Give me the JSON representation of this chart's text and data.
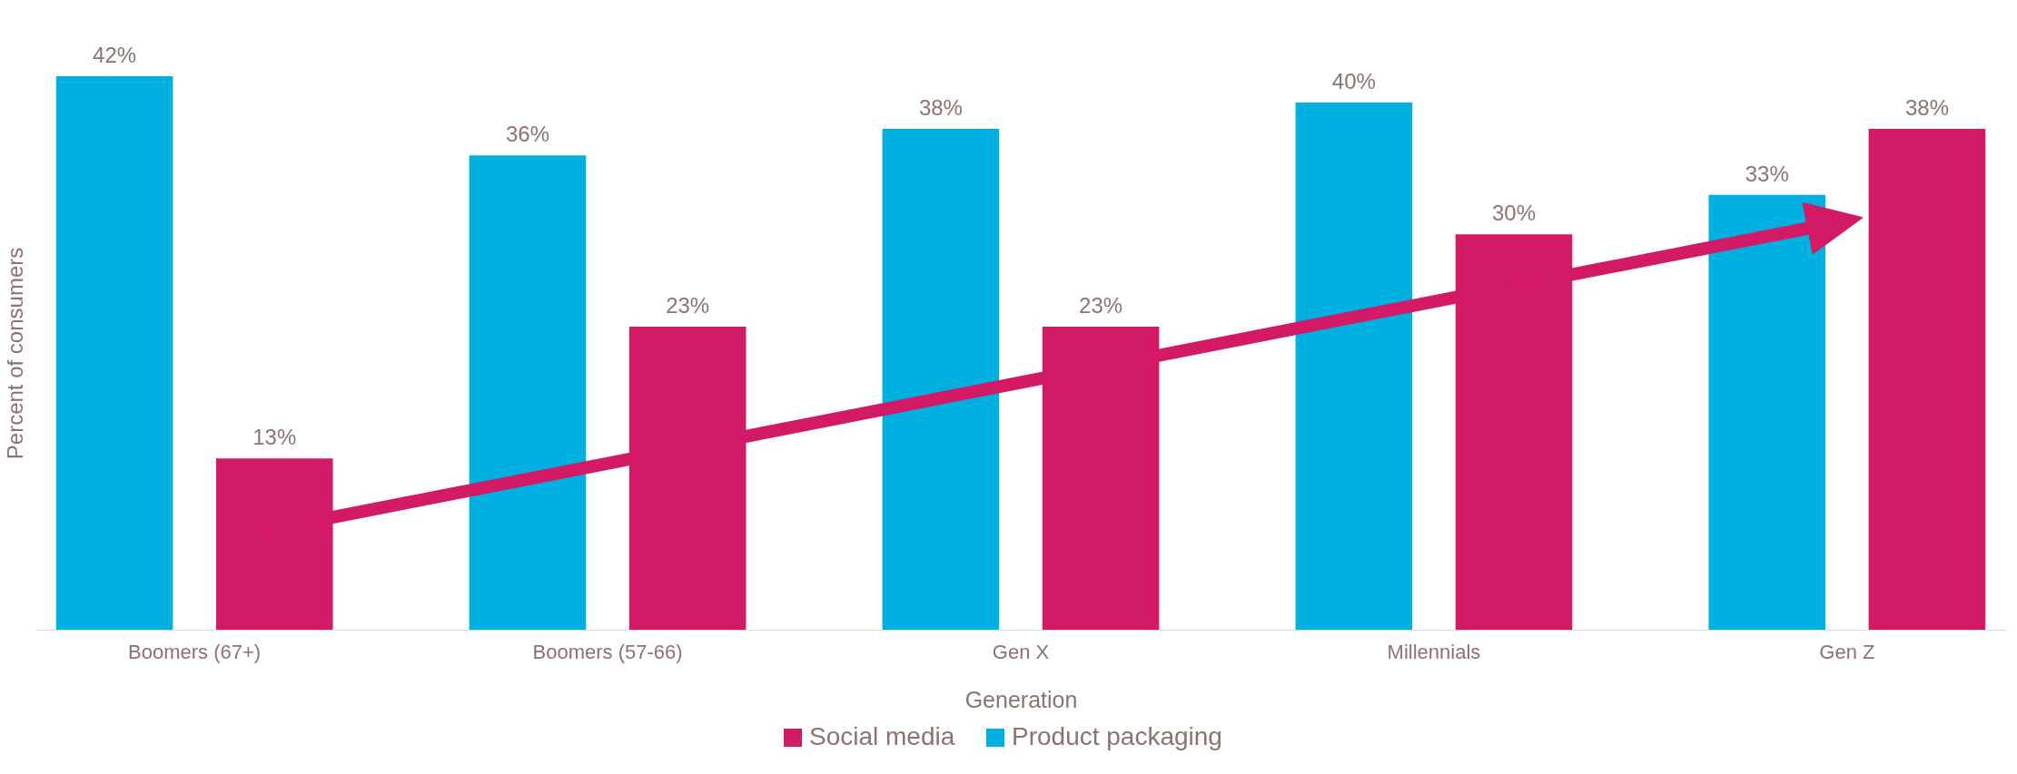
{
  "chart_data": {
    "type": "bar",
    "xlabel": "Generation",
    "ylabel": "Percent of consumers",
    "categories": [
      "Boomers (67+)",
      "Boomers (57-66)",
      "Gen X",
      "Millennials",
      "Gen Z"
    ],
    "series": [
      {
        "name": "Social media",
        "color": "#d31a66",
        "values": [
          13,
          23,
          23,
          30,
          38
        ],
        "value_labels": [
          "13%",
          "23%",
          "23%",
          "30%",
          "38%"
        ]
      },
      {
        "name": "Product packaging",
        "color": "#00b0e0",
        "values": [
          42,
          36,
          38,
          40,
          33
        ],
        "value_labels": [
          "42%",
          "36%",
          "38%",
          "40%",
          "33%"
        ]
      }
    ],
    "tick_labels": "x",
    "legend": "bottom",
    "grid": false
  }
}
